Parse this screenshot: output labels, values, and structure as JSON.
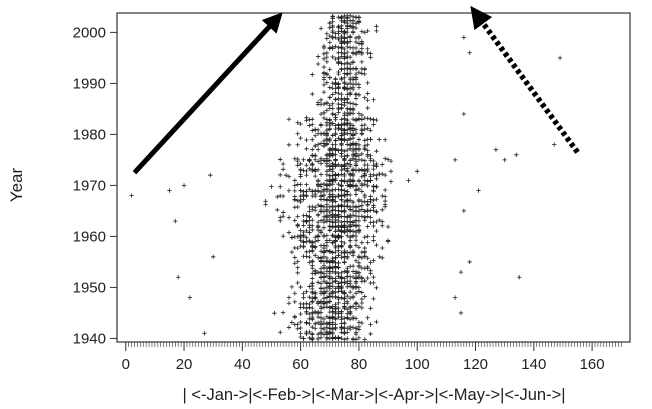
{
  "chart_data": {
    "type": "scatter",
    "title": "",
    "xlabel": "| <-Jan->|<-Feb->|<-Mar->|<-Apr->|<-May->|<-Jun->|",
    "ylabel": "Year",
    "xlim": [
      -3,
      173
    ],
    "ylim": [
      1939.3,
      2003.8
    ],
    "x_ticks": [
      0,
      20,
      40,
      60,
      80,
      100,
      120,
      140,
      160
    ],
    "y_ticks": [
      1940,
      1950,
      1960,
      1970,
      1980,
      1990,
      2000
    ],
    "grid": false,
    "legend": "none",
    "marker": "+",
    "colors": {
      "points": "#222222",
      "arrows": "#000000",
      "frame": "#333333"
    },
    "annotations": [
      {
        "name": "solid-arrow",
        "style": "solid",
        "from": [
          3,
          1972.5
        ],
        "to": [
          52,
          2002.8
        ]
      },
      {
        "name": "dotted-arrow",
        "style": "dotted",
        "from": [
          155,
          1976.5
        ],
        "to": [
          120,
          2003.8
        ]
      }
    ],
    "density_profile": {
      "year_start": 1940,
      "year_end": 2003,
      "center_day_at_1940": 70,
      "center_day_at_2003": 76,
      "spread_days": 11,
      "points_per_year": 30,
      "outliers": [
        {
          "x": 2,
          "y": 1968
        },
        {
          "x": 15,
          "y": 1969
        },
        {
          "x": 20,
          "y": 1970
        },
        {
          "x": 17,
          "y": 1963
        },
        {
          "x": 18,
          "y": 1952
        },
        {
          "x": 22,
          "y": 1948
        },
        {
          "x": 27,
          "y": 1941
        },
        {
          "x": 30,
          "y": 1956
        },
        {
          "x": 29,
          "y": 1972
        },
        {
          "x": 134,
          "y": 1976
        },
        {
          "x": 130,
          "y": 1975
        },
        {
          "x": 127,
          "y": 1977
        },
        {
          "x": 149,
          "y": 1995
        },
        {
          "x": 135,
          "y": 1952
        },
        {
          "x": 147,
          "y": 1978
        },
        {
          "x": 121,
          "y": 1969
        },
        {
          "x": 118,
          "y": 1996
        },
        {
          "x": 116,
          "y": 1999
        },
        {
          "x": 113,
          "y": 1948
        },
        {
          "x": 118,
          "y": 1955
        },
        {
          "x": 116,
          "y": 1965
        },
        {
          "x": 116,
          "y": 1984
        },
        {
          "x": 113,
          "y": 1975
        },
        {
          "x": 115,
          "y": 1953
        },
        {
          "x": 115,
          "y": 1945
        }
      ]
    }
  }
}
